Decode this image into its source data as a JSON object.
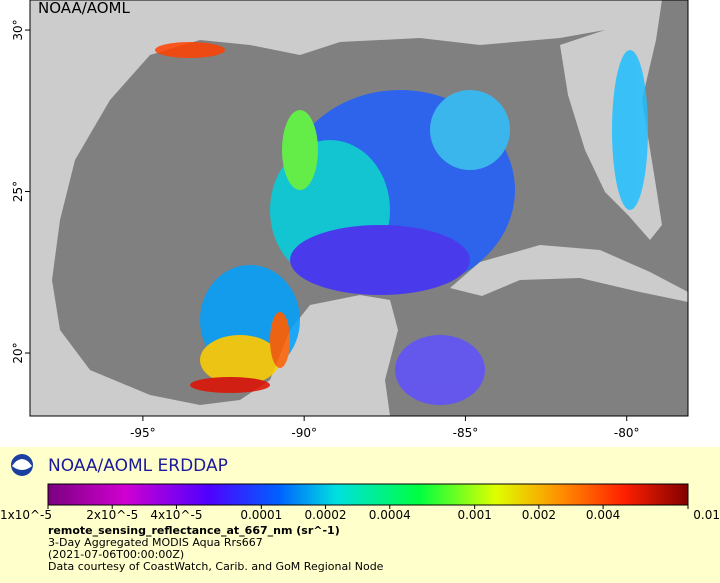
{
  "map": {
    "credit": "NOAA/AOML",
    "xlim": [
      -98.5,
      -78.1
    ],
    "ylim": [
      18.05,
      30.93
    ],
    "xticks": [
      {
        "value": -95,
        "label": "-95°"
      },
      {
        "value": -90,
        "label": "-90°"
      },
      {
        "value": -85,
        "label": "-85°"
      },
      {
        "value": -80,
        "label": "-80°"
      }
    ],
    "yticks": [
      {
        "value": 20,
        "label": "20°"
      },
      {
        "value": 25,
        "label": "25°"
      },
      {
        "value": 30,
        "label": "30°"
      }
    ]
  },
  "legend": {
    "title": "NOAA/AOML ERDDAP",
    "scale": "log",
    "range": [
      1e-05,
      0.01
    ],
    "ticks": [
      {
        "value": 1e-05,
        "label": "1x10^-5"
      },
      {
        "value": 2e-05,
        "label": "2x10^-5"
      },
      {
        "value": 4e-05,
        "label": "4x10^-5"
      },
      0.0001,
      0.0002,
      0.0004,
      0.001,
      0.002,
      0.004,
      0.01
    ],
    "variable": "remote_sensing_reflectance_at_667_nm (sr^-1)",
    "lines": [
      "3-Day Aggregated MODIS Aqua Rrs667",
      "(2021-07-06T00:00:00Z)",
      "Data courtesy of CoastWatch, Carib. and GoM Regional Node"
    ]
  }
}
